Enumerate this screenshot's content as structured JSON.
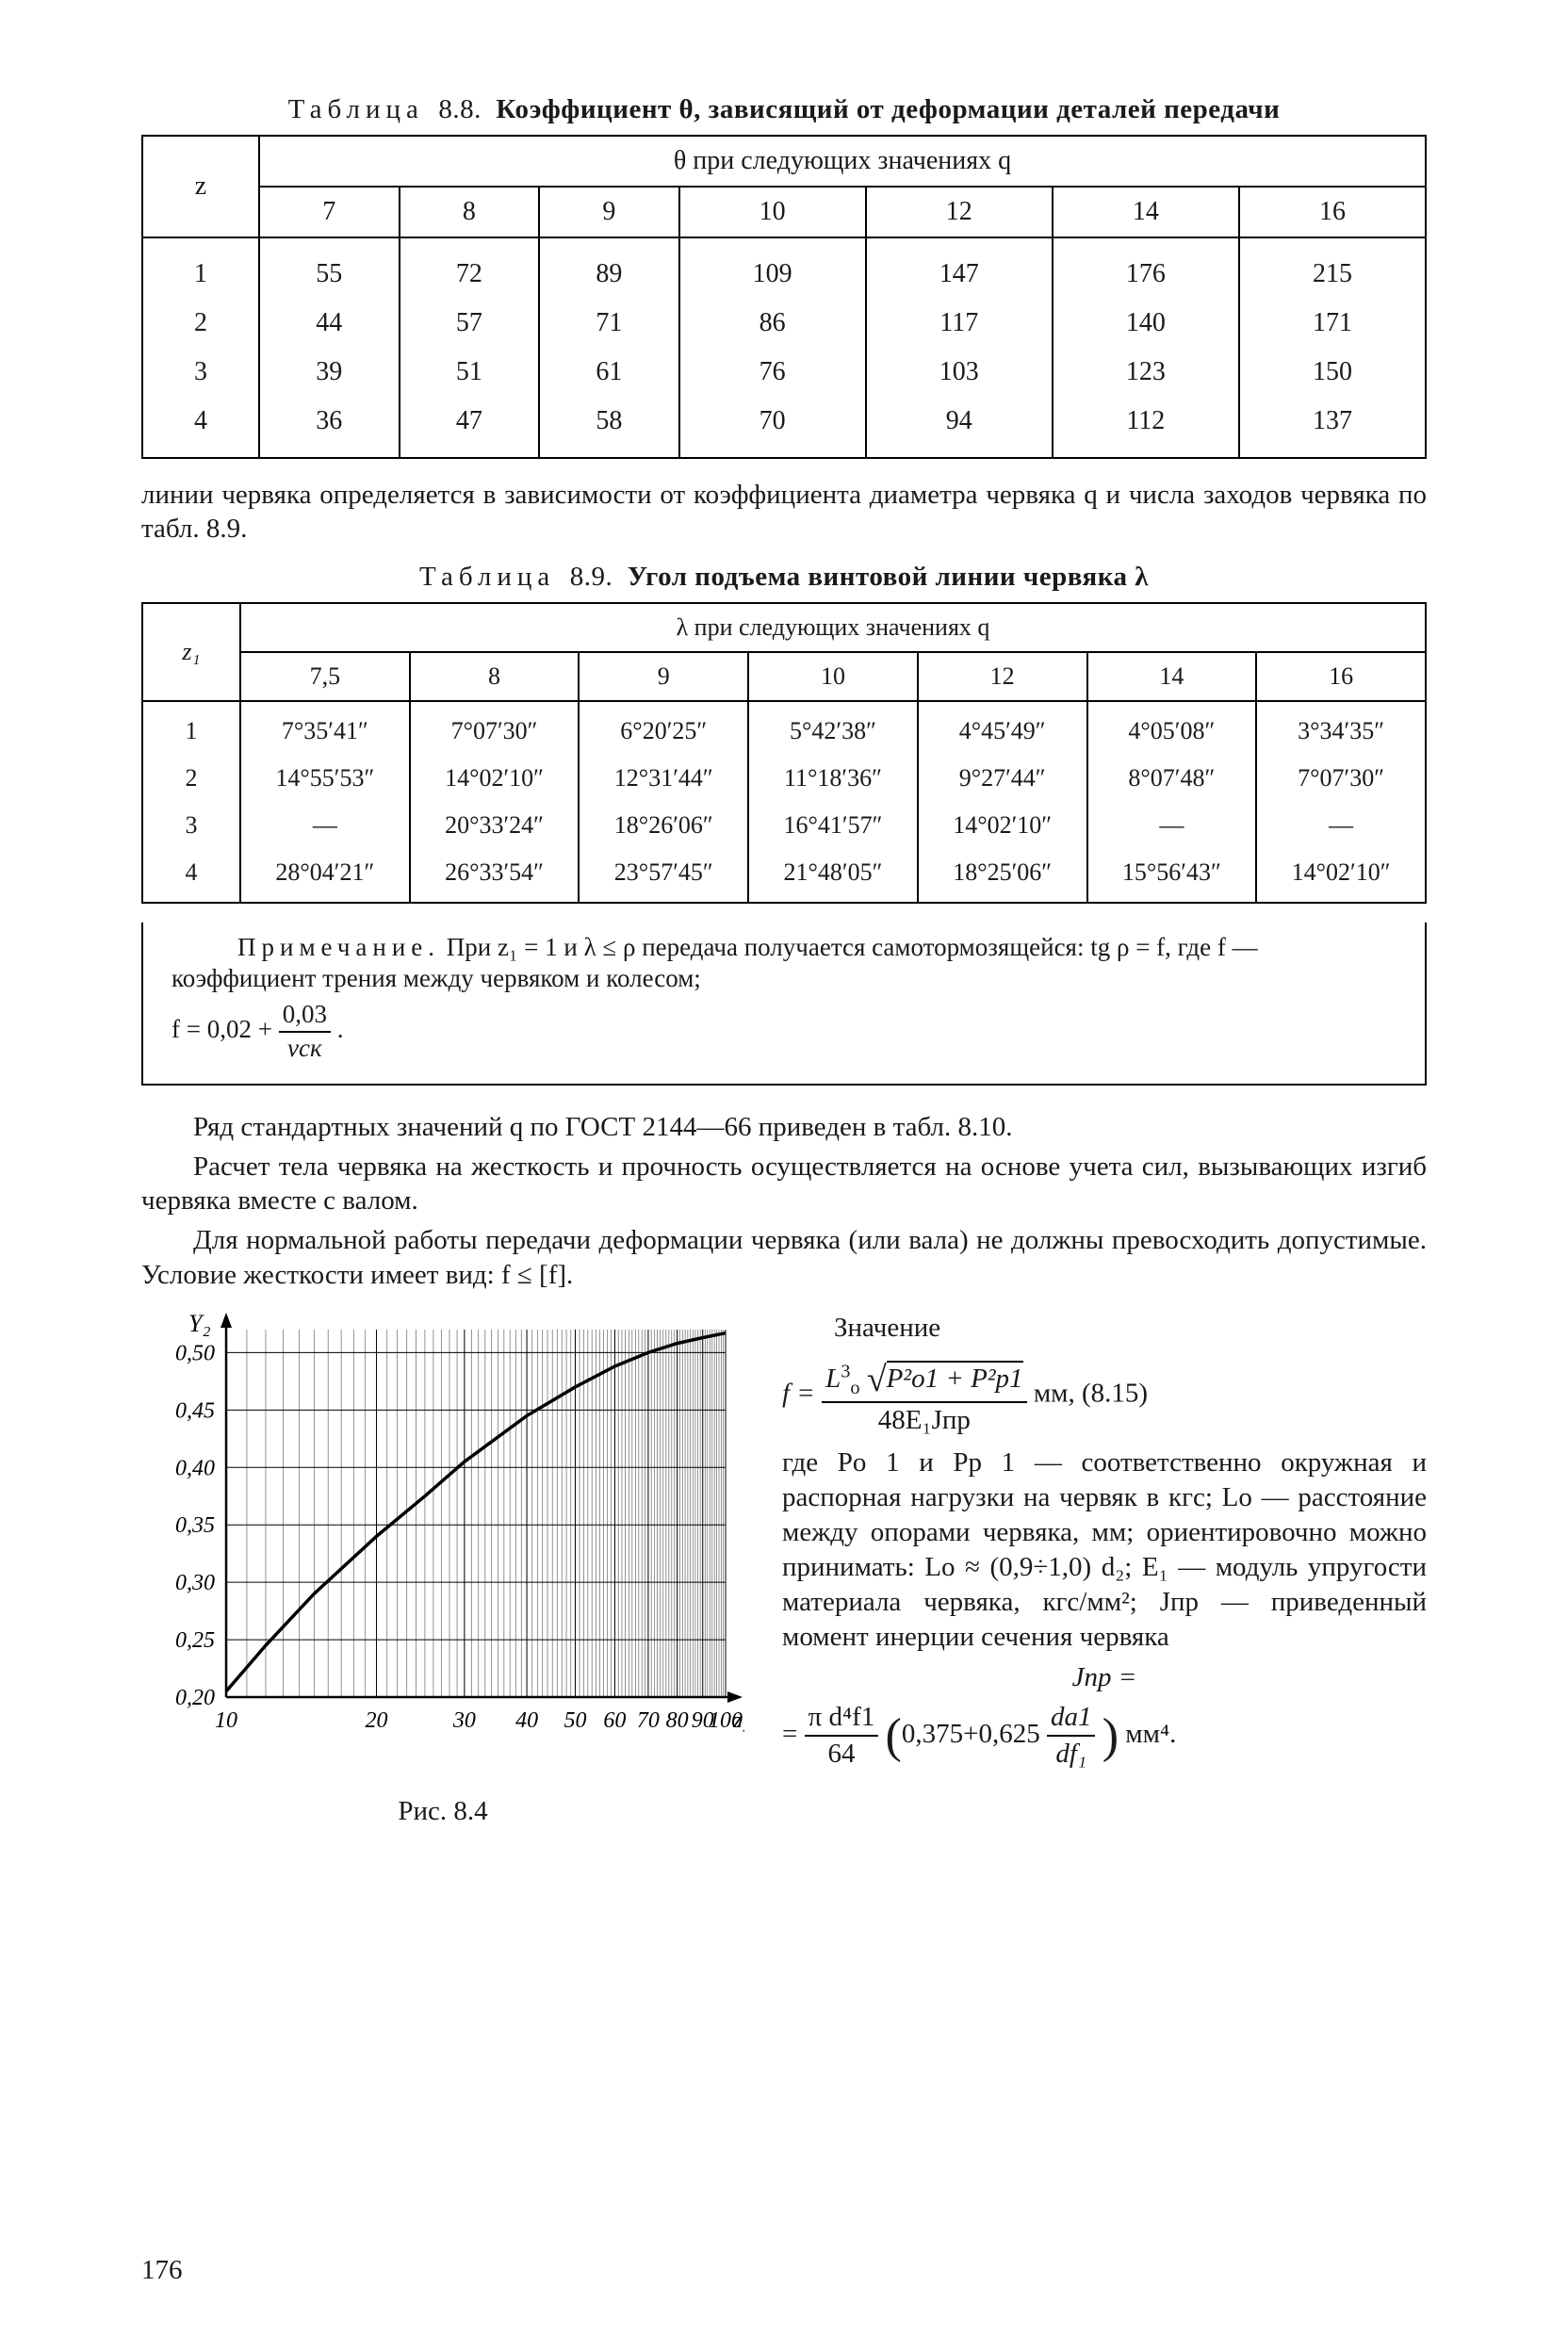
{
  "table88": {
    "caption_prefix": "Таблица",
    "caption_num": "8.8.",
    "caption_bold": "Коэффициент θ, зависящий от деформации деталей передачи",
    "header_span": "θ при следующих значениях q",
    "row_header": "z",
    "cols": [
      "7",
      "8",
      "9",
      "10",
      "12",
      "14",
      "16"
    ],
    "rows": [
      {
        "z": "1",
        "v": [
          "55",
          "72",
          "89",
          "109",
          "147",
          "176",
          "215"
        ]
      },
      {
        "z": "2",
        "v": [
          "44",
          "57",
          "71",
          "86",
          "117",
          "140",
          "171"
        ]
      },
      {
        "z": "3",
        "v": [
          "39",
          "51",
          "61",
          "76",
          "103",
          "123",
          "150"
        ]
      },
      {
        "z": "4",
        "v": [
          "36",
          "47",
          "58",
          "70",
          "94",
          "112",
          "137"
        ]
      }
    ]
  },
  "para1": "линии червяка определяется в зависимости от коэффициента диаметра червяка q и числа заходов червяка по табл. 8.9.",
  "table89": {
    "caption_prefix": "Таблица",
    "caption_num": "8.9.",
    "caption_bold": "Угол подъема винтовой линии червяка λ",
    "header_span": "λ при следующих значениях q",
    "row_header": "z₁",
    "cols": [
      "7,5",
      "8",
      "9",
      "10",
      "12",
      "14",
      "16"
    ],
    "rows": [
      {
        "z": "1",
        "v": [
          "7°35′41″",
          "7°07′30″",
          "6°20′25″",
          "5°42′38″",
          "4°45′49″",
          "4°05′08″",
          "3°34′35″"
        ]
      },
      {
        "z": "2",
        "v": [
          "14°55′53″",
          "14°02′10″",
          "12°31′44″",
          "11°18′36″",
          "9°27′44″",
          "8°07′48″",
          "7°07′30″"
        ]
      },
      {
        "z": "3",
        "v": [
          "—",
          "20°33′24″",
          "18°26′06″",
          "16°41′57″",
          "14°02′10″",
          "—",
          "—"
        ]
      },
      {
        "z": "4",
        "v": [
          "28°04′21″",
          "26°33′54″",
          "23°57′45″",
          "21°48′05″",
          "18°25′06″",
          "15°56′43″",
          "14°02′10″"
        ]
      }
    ],
    "note_label": "Примечание.",
    "note_body_1": "При z₁ = 1 и λ ≤ ρ передача получается самотормозящейся: tg ρ = f, где f — коэффициент трения между червяком и колесом;",
    "note_eq_lhs": "f = 0,02 + ",
    "note_eq_num": "0,03",
    "note_eq_den": "vск",
    "note_eq_tail": " ."
  },
  "para2": "Ряд стандартных значений q по ГОСТ 2144—66 приведен в табл. 8.10.",
  "para3": "Расчет тела червяка на жесткость и прочность осуществляется на основе учета сил, вызывающих изгиб червяка вместе с валом.",
  "para4": "Для нормальной работы передачи деформации червяка (или вала) не должны превосходить допустимые. Условие жесткости имеет вид: f ≤ [f].",
  "rhs": {
    "heading": "Значение",
    "eq_lhs": "f = ",
    "eq_num_a": "L",
    "eq_num_a_sup": "3",
    "eq_num_a_sub": "о",
    "eq_num_root": "P²о1 + P²р1",
    "eq_den": "48E₁Jпр",
    "eq_tail": " мм, (8.15)",
    "body": "где Pо 1 и Pр 1 — соответственно окружная и распорная нагрузки на червяк в кгс; Lо — расстояние между опорами червяка, мм; ориентировочно можно принимать: Lо ≈ (0,9÷1,0) d₂; E₁ — модуль упругости материала червяка, кгс/мм²; Jпр — приведенный момент инерции сечения червяка",
    "eq2_lhs": "Jпр =",
    "eq2_num": "π d⁴f1",
    "eq2_den": "64",
    "eq2_paren": "0,375+0,625 ",
    "eq2_inner_num": "da1",
    "eq2_inner_den": "df₁",
    "eq2_tail": " мм⁴."
  },
  "chart": {
    "ylabel": "Y₂",
    "xlabel_suffix": "z₂",
    "x_min": 10,
    "x_max": 100,
    "y_min": 0.2,
    "y_max": 0.52,
    "y_ticks": [
      "0,50",
      "0,45",
      "0,40",
      "0,35",
      "0,30",
      "0,25",
      "0,20"
    ],
    "y_tick_vals": [
      0.5,
      0.45,
      0.4,
      0.35,
      0.3,
      0.25,
      0.2
    ],
    "x_ticks": [
      "10",
      "20",
      "30",
      "40",
      "50",
      "60",
      "70",
      "80",
      "90",
      "100"
    ],
    "x_tick_vals": [
      10,
      20,
      30,
      40,
      50,
      60,
      70,
      80,
      90,
      100
    ],
    "minor_x_divisions": 10,
    "curve": [
      [
        10,
        0.205
      ],
      [
        12,
        0.245
      ],
      [
        15,
        0.29
      ],
      [
        20,
        0.34
      ],
      [
        25,
        0.375
      ],
      [
        30,
        0.405
      ],
      [
        40,
        0.445
      ],
      [
        50,
        0.47
      ],
      [
        60,
        0.488
      ],
      [
        70,
        0.5
      ],
      [
        80,
        0.508
      ],
      [
        90,
        0.513
      ],
      [
        100,
        0.517
      ]
    ],
    "colors": {
      "axis": "#000000",
      "grid": "#000000",
      "curve": "#000000",
      "bg": "#ffffff"
    },
    "line_widths": {
      "axis": 2.5,
      "grid": 1,
      "curve": 3.5
    },
    "font_size_ticks": 24,
    "caption": "Рис. 8.4"
  },
  "page_number": "176"
}
